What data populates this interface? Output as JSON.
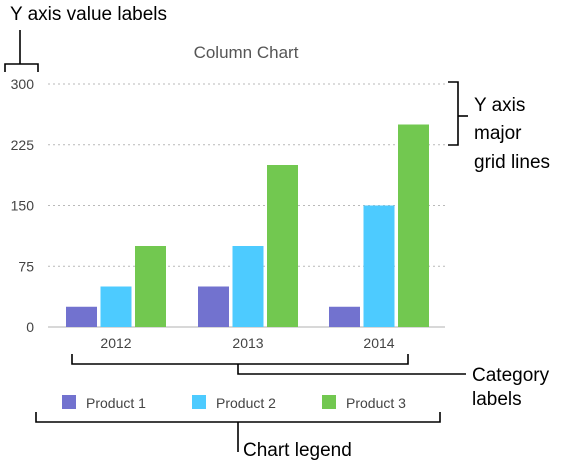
{
  "annotations": {
    "y_axis_value_labels": "Y axis value labels",
    "y_axis_grid_lines": [
      "Y axis",
      "major",
      "grid lines"
    ],
    "category_labels": [
      "Category",
      "labels"
    ],
    "chart_legend": "Chart legend"
  },
  "chart_data": {
    "type": "bar",
    "title": "Column Chart",
    "categories": [
      "2012",
      "2013",
      "2014"
    ],
    "series": [
      {
        "name": "Product 1",
        "values": [
          25,
          50,
          25
        ],
        "color": "#7272cf"
      },
      {
        "name": "Product 2",
        "values": [
          50,
          100,
          150
        ],
        "color": "#4dcbff"
      },
      {
        "name": "Product 3",
        "values": [
          100,
          200,
          250
        ],
        "color": "#72c850"
      }
    ],
    "y_ticks": [
      "0",
      "75",
      "150",
      "225",
      "300"
    ],
    "ylim": [
      0,
      300
    ],
    "grid": true,
    "grid_style": "dotted",
    "legend_position": "bottom"
  }
}
